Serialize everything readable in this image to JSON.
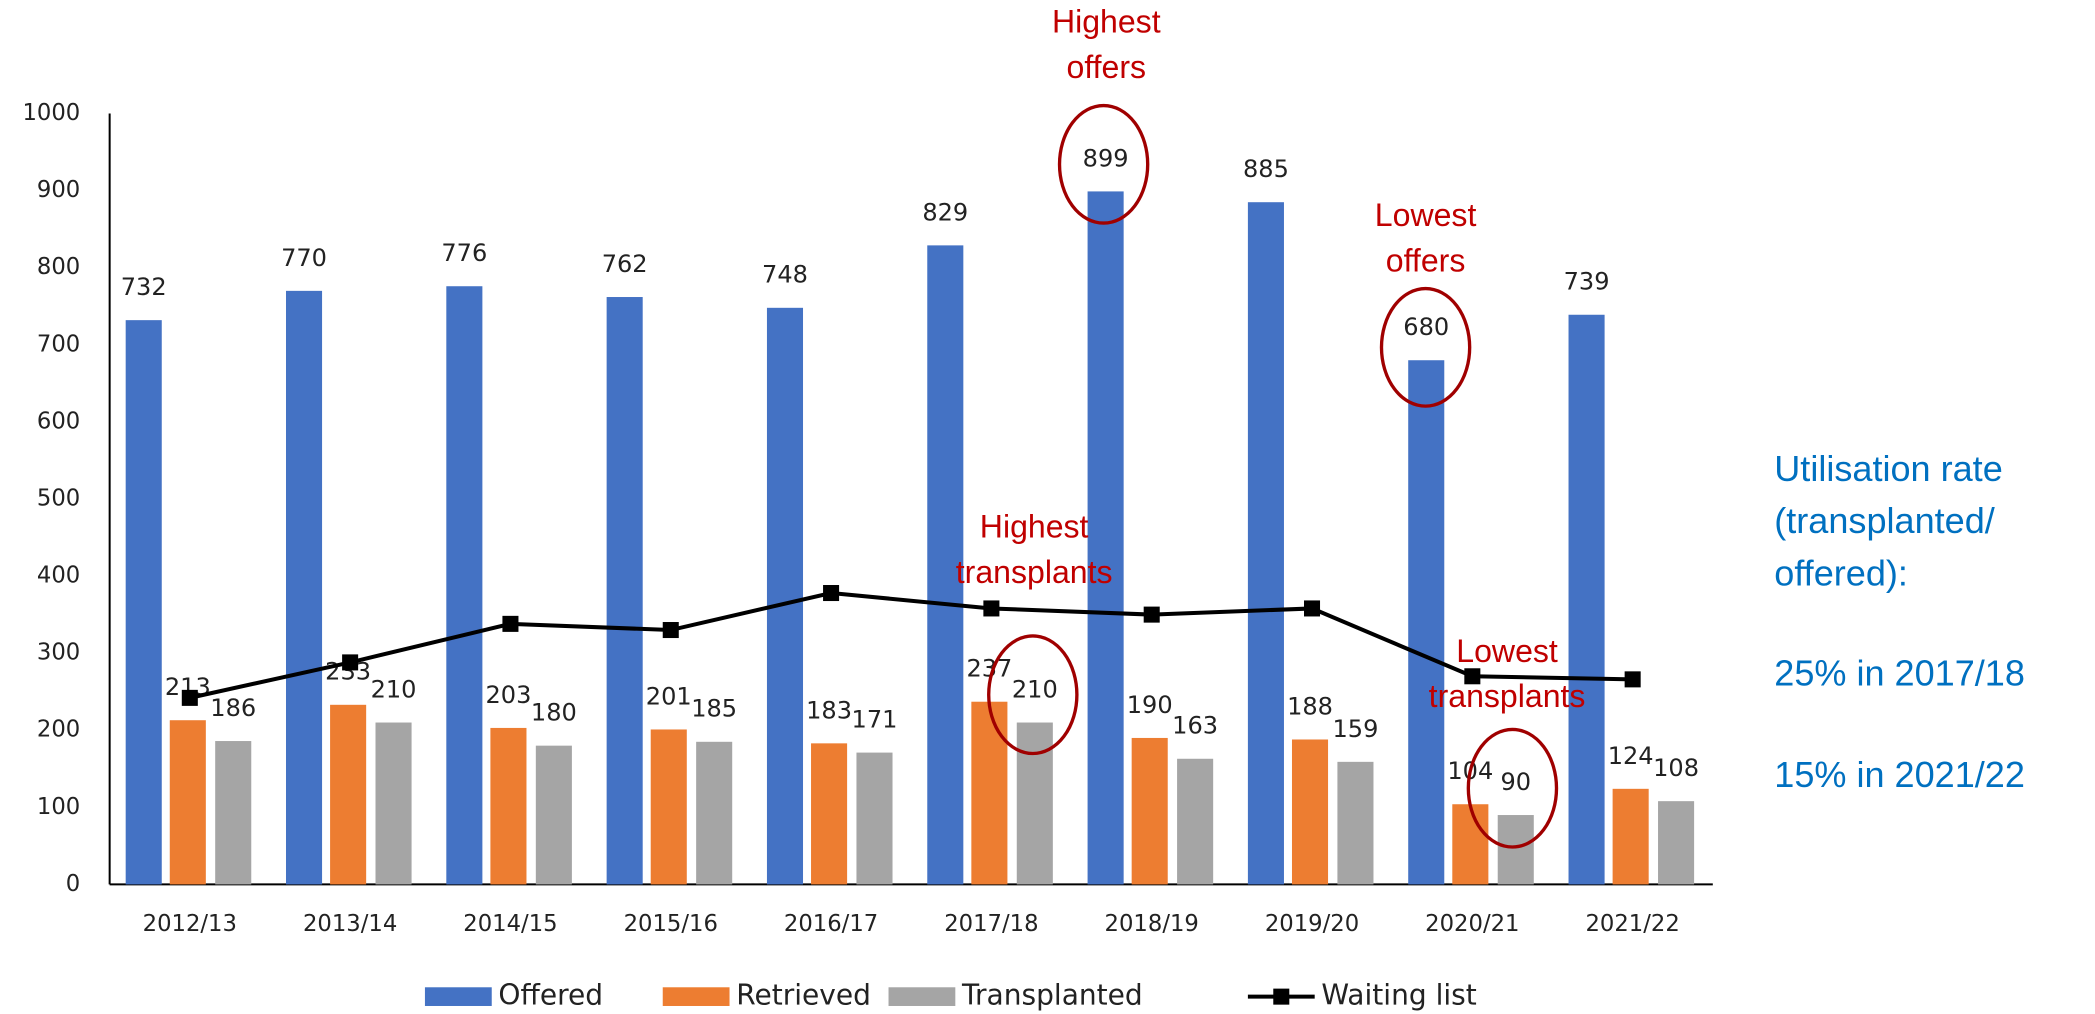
{
  "chart_data": {
    "type": "bar",
    "categories": [
      "2012/13",
      "2013/14",
      "2014/15",
      "2015/16",
      "2016/17",
      "2017/18",
      "2018/19",
      "2019/20",
      "2020/21",
      "2021/22"
    ],
    "series": [
      {
        "name": "Offered",
        "color": "#4472c4",
        "values": [
          732,
          770,
          776,
          762,
          748,
          829,
          899,
          885,
          680,
          739
        ]
      },
      {
        "name": "Retrieved",
        "color": "#ed7d31",
        "values": [
          213,
          233,
          203,
          201,
          183,
          237,
          190,
          188,
          104,
          124
        ]
      },
      {
        "name": "Transplanted",
        "color": "#a5a5a5",
        "values": [
          186,
          210,
          180,
          185,
          171,
          210,
          163,
          159,
          90,
          108
        ]
      },
      {
        "name": "Waiting list",
        "color": "#000000",
        "type": "line",
        "values": [
          242,
          288,
          338,
          330,
          378,
          358,
          350,
          358,
          270,
          266
        ]
      }
    ],
    "ylim": [
      0,
      1000
    ],
    "yticks": [
      0,
      100,
      200,
      300,
      400,
      500,
      600,
      700,
      800,
      900,
      1000
    ],
    "legend": "bottom",
    "annotations": [
      {
        "lines": [
          "Highest",
          "offers"
        ]
      },
      {
        "lines": [
          "Lowest",
          "offers"
        ]
      },
      {
        "lines": [
          "Highest",
          "transplants"
        ]
      },
      {
        "lines": [
          "Lowest",
          "transplants"
        ]
      }
    ],
    "note": {
      "lines": [
        "Utilisation rate",
        "(transplanted/",
        "offered):"
      ],
      "rates": [
        "25% in 2017/18",
        "15% in 2021/22"
      ]
    }
  }
}
